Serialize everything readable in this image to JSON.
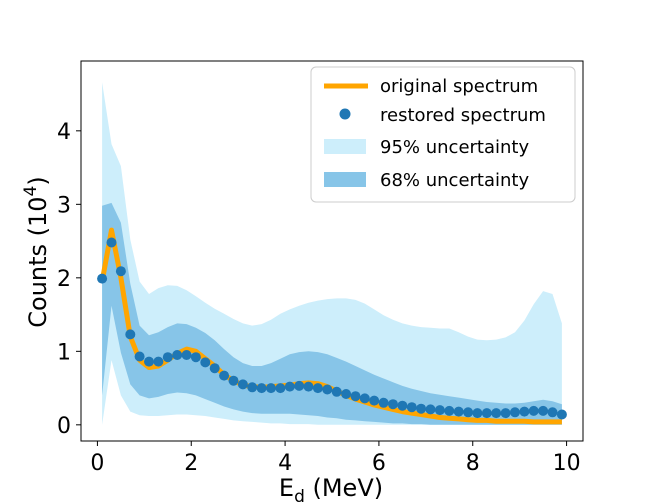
{
  "chart_data": {
    "type": "line",
    "xlabel": "E",
    "xlabel_sub": "d",
    "xlabel_unit": " (MeV)",
    "ylabel": "Counts (10",
    "ylabel_sup": "4",
    "ylabel_end": ")",
    "xlim": [
      -0.35,
      10.35
    ],
    "ylim": [
      -0.22,
      4.95
    ],
    "x_ticks": [
      0,
      2,
      4,
      6,
      8,
      10
    ],
    "y_ticks": [
      0,
      1,
      2,
      3,
      4
    ],
    "x_tick_labels": [
      "0",
      "2",
      "4",
      "6",
      "8",
      "10"
    ],
    "y_tick_labels": [
      "0",
      "1",
      "2",
      "3",
      "4"
    ],
    "legend_position": "top-right",
    "legend": {
      "original": " original spectrum",
      "restored": "restored spectrum",
      "band95": "95% uncertainty",
      "band68": "68% uncertainty"
    },
    "colors": {
      "original": "#ffa500",
      "restored": "#1f77b4",
      "band95": "#cdeefb",
      "band68": "#87c5e8"
    },
    "x": [
      0.1,
      0.3,
      0.5,
      0.7,
      0.9,
      1.1,
      1.3,
      1.5,
      1.7,
      1.9,
      2.1,
      2.3,
      2.5,
      2.7,
      2.9,
      3.1,
      3.3,
      3.5,
      3.7,
      3.9,
      4.1,
      4.3,
      4.5,
      4.7,
      4.9,
      5.1,
      5.3,
      5.5,
      5.7,
      5.9,
      6.1,
      6.3,
      6.5,
      6.7,
      6.9,
      7.1,
      7.3,
      7.5,
      7.7,
      7.9,
      8.1,
      8.3,
      8.5,
      8.7,
      8.9,
      9.1,
      9.3,
      9.5,
      9.7,
      9.9
    ],
    "series": [
      {
        "name": " original spectrum",
        "kind": "line",
        "values": [
          1.95,
          2.65,
          2.0,
          1.2,
          0.88,
          0.78,
          0.8,
          0.88,
          0.97,
          1.03,
          1.0,
          0.9,
          0.8,
          0.68,
          0.6,
          0.54,
          0.52,
          0.51,
          0.52,
          0.53,
          0.54,
          0.56,
          0.57,
          0.56,
          0.52,
          0.46,
          0.4,
          0.35,
          0.31,
          0.27,
          0.24,
          0.21,
          0.18,
          0.16,
          0.14,
          0.12,
          0.1,
          0.09,
          0.08,
          0.07,
          0.06,
          0.06,
          0.05,
          0.05,
          0.05,
          0.05,
          0.04,
          0.04,
          0.04,
          0.04
        ]
      },
      {
        "name": "restored spectrum",
        "kind": "scatter",
        "values": [
          1.99,
          2.48,
          2.09,
          1.23,
          0.93,
          0.86,
          0.86,
          0.92,
          0.95,
          0.95,
          0.92,
          0.85,
          0.77,
          0.67,
          0.6,
          0.55,
          0.51,
          0.5,
          0.5,
          0.5,
          0.52,
          0.53,
          0.52,
          0.5,
          0.48,
          0.45,
          0.42,
          0.39,
          0.36,
          0.33,
          0.3,
          0.28,
          0.26,
          0.24,
          0.22,
          0.21,
          0.2,
          0.19,
          0.18,
          0.17,
          0.16,
          0.16,
          0.16,
          0.16,
          0.17,
          0.18,
          0.19,
          0.19,
          0.17,
          0.14
        ]
      }
    ],
    "band95": {
      "name": "95% uncertainty",
      "upper": [
        4.66,
        3.82,
        3.52,
        2.52,
        1.95,
        1.78,
        1.86,
        1.9,
        1.89,
        1.83,
        1.75,
        1.66,
        1.58,
        1.51,
        1.44,
        1.38,
        1.35,
        1.37,
        1.43,
        1.51,
        1.57,
        1.62,
        1.66,
        1.69,
        1.71,
        1.72,
        1.72,
        1.7,
        1.65,
        1.57,
        1.49,
        1.43,
        1.38,
        1.35,
        1.33,
        1.32,
        1.31,
        1.31,
        1.26,
        1.2,
        1.16,
        1.15,
        1.16,
        1.19,
        1.26,
        1.42,
        1.64,
        1.82,
        1.78,
        1.38
      ],
      "lower": [
        0.0,
        0.88,
        0.4,
        0.18,
        0.13,
        0.12,
        0.12,
        0.13,
        0.14,
        0.14,
        0.13,
        0.12,
        0.1,
        0.08,
        0.06,
        0.05,
        0.04,
        0.03,
        0.02,
        0.02,
        0.01,
        0.01,
        0.01,
        0.0,
        0.0,
        0.0,
        0.0,
        0.0,
        0.0,
        0.0,
        0.0,
        0.0,
        0.0,
        0.0,
        0.0,
        0.0,
        0.0,
        0.0,
        0.0,
        0.0,
        0.0,
        0.0,
        0.0,
        0.0,
        0.0,
        0.0,
        0.0,
        0.0,
        0.0,
        0.0
      ]
    },
    "band68": {
      "name": "68% uncertainty",
      "upper": [
        2.98,
        3.02,
        2.75,
        1.92,
        1.35,
        1.22,
        1.26,
        1.33,
        1.38,
        1.37,
        1.32,
        1.25,
        1.15,
        1.03,
        0.92,
        0.84,
        0.8,
        0.8,
        0.84,
        0.9,
        0.96,
        0.99,
        1.0,
        0.99,
        0.96,
        0.91,
        0.86,
        0.8,
        0.74,
        0.68,
        0.63,
        0.58,
        0.53,
        0.49,
        0.46,
        0.43,
        0.41,
        0.39,
        0.37,
        0.35,
        0.33,
        0.31,
        0.3,
        0.29,
        0.29,
        0.3,
        0.32,
        0.34,
        0.32,
        0.28
      ],
      "lower": [
        0.4,
        1.62,
        0.98,
        0.55,
        0.4,
        0.36,
        0.38,
        0.42,
        0.44,
        0.43,
        0.4,
        0.35,
        0.3,
        0.25,
        0.21,
        0.18,
        0.16,
        0.15,
        0.15,
        0.15,
        0.15,
        0.14,
        0.13,
        0.12,
        0.1,
        0.09,
        0.07,
        0.06,
        0.05,
        0.04,
        0.03,
        0.02,
        0.02,
        0.01,
        0.01,
        0.0,
        0.0,
        0.0,
        0.0,
        0.0,
        0.0,
        0.0,
        0.0,
        0.0,
        0.0,
        0.0,
        0.0,
        0.0,
        0.0,
        0.0
      ]
    }
  }
}
